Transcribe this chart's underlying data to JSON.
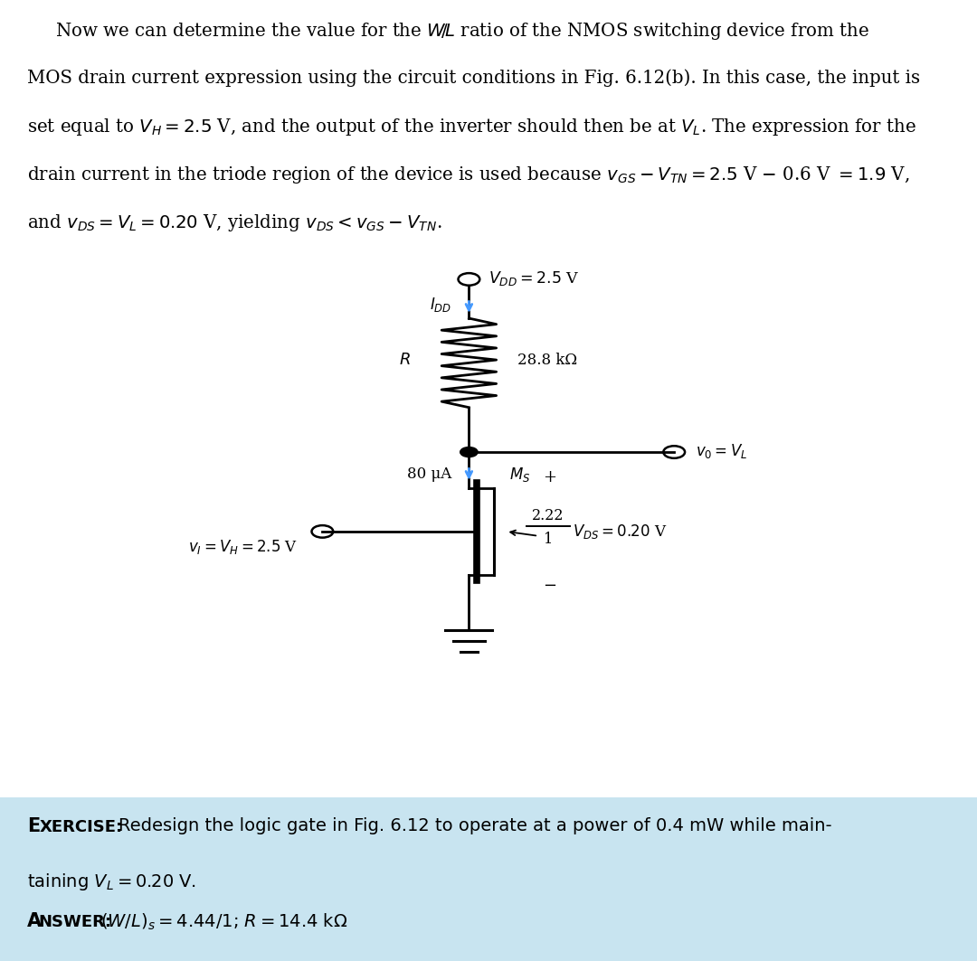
{
  "bg_color": "#ffffff",
  "exercise_bg_color": "#c8e4f0",
  "circuit": {
    "vdd_label": "$V_{DD} = 2.5$ V",
    "idd_label": "$I_{DD}$",
    "r_label": "$R$",
    "r_value": "28.8 kΩ",
    "current_label": "80 μA",
    "ms_label": "$M_S$",
    "wl_num": "2.22",
    "wl_den": "1",
    "vds_plus": "+",
    "vds_minus": "−",
    "vds_label": "$V_{DS} = 0.20$ V",
    "vo_label": "$v_0 = V_L$",
    "vi_label": "$v_I = V_H = 2.5$ V",
    "arrow_color": "#4499ff",
    "wire_color": "#000000"
  }
}
